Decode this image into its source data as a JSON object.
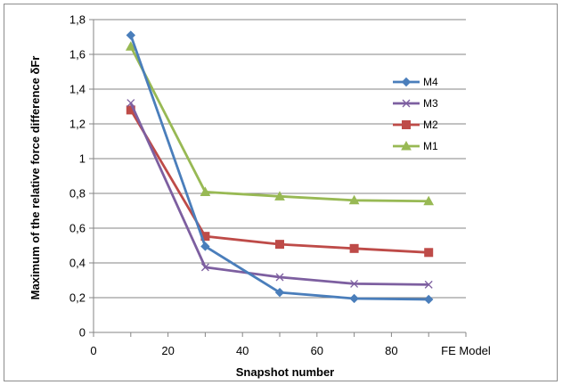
{
  "chart_data": {
    "type": "line",
    "title": "",
    "xlabel": "Snapshot number",
    "ylabel": "Maximum of the relative force difference δFr",
    "x": [
      10,
      30,
      50,
      70,
      90
    ],
    "xlim": [
      0,
      100
    ],
    "ylim": [
      0,
      1.8
    ],
    "x_ticks": [
      "0",
      "20",
      "40",
      "60",
      "80"
    ],
    "x_end_label": "FE Model",
    "y_ticks": [
      "0",
      "0,2",
      "0,4",
      "0,6",
      "0,8",
      "1",
      "1,2",
      "1,4",
      "1,6",
      "1,8"
    ],
    "grid": "horizontal",
    "legend_position": "right",
    "series": [
      {
        "name": "M4",
        "values": [
          1.71,
          0.495,
          0.23,
          0.195,
          0.19
        ],
        "color": "#4a7ebb",
        "marker": "diamond"
      },
      {
        "name": "M3",
        "values": [
          1.32,
          0.375,
          0.318,
          0.28,
          0.275
        ],
        "color": "#7d5fa0",
        "marker": "x"
      },
      {
        "name": "M2",
        "values": [
          1.28,
          0.553,
          0.507,
          0.483,
          0.46
        ],
        "color": "#be4b48",
        "marker": "square"
      },
      {
        "name": "M1",
        "values": [
          1.645,
          0.808,
          0.783,
          0.76,
          0.755
        ],
        "color": "#98b954",
        "marker": "triangle"
      }
    ]
  }
}
